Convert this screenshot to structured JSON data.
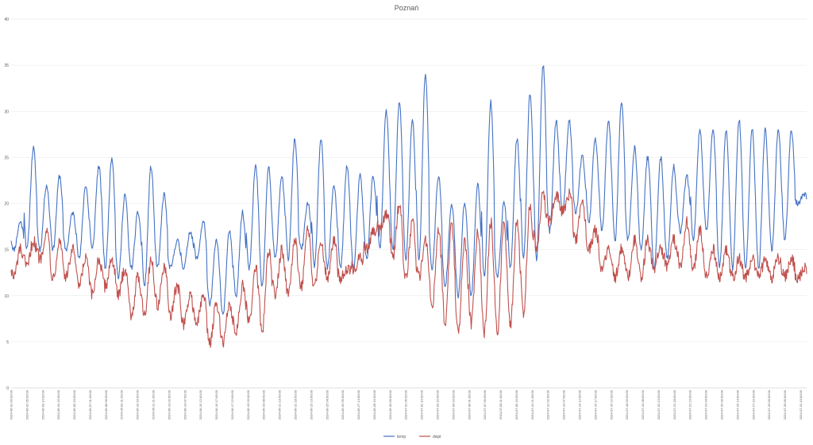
{
  "chart_data": {
    "type": "line",
    "title": "Poznań",
    "xlabel": "",
    "ylabel": "",
    "ylim": [
      0,
      40
    ],
    "yticks": [
      0,
      5,
      10,
      15,
      20,
      25,
      30,
      35,
      40
    ],
    "grid": true,
    "legend_position": "bottom",
    "x_start": "2024-06-01 00:00",
    "x_end": "2024-07-31 21:00",
    "x_tick_step_hours": 3,
    "x_label_pattern": "YYYY-MM-DD HH:00:00",
    "x": [
      "2024-06-01",
      "2024-06-02",
      "2024-06-03",
      "2024-06-04",
      "2024-06-05",
      "2024-06-06",
      "2024-06-07",
      "2024-06-08",
      "2024-06-09",
      "2024-06-10",
      "2024-06-11",
      "2024-06-12",
      "2024-06-13",
      "2024-06-14",
      "2024-06-15",
      "2024-06-16",
      "2024-06-17",
      "2024-06-18",
      "2024-06-19",
      "2024-06-20",
      "2024-06-21",
      "2024-06-22",
      "2024-06-23",
      "2024-06-24",
      "2024-06-25",
      "2024-06-26",
      "2024-06-27",
      "2024-06-28",
      "2024-06-29",
      "2024-06-30",
      "2024-07-01",
      "2024-07-02",
      "2024-07-03",
      "2024-07-04",
      "2024-07-05",
      "2024-07-06",
      "2024-07-07",
      "2024-07-08",
      "2024-07-09",
      "2024-07-10",
      "2024-07-11",
      "2024-07-12",
      "2024-07-13",
      "2024-07-14",
      "2024-07-15",
      "2024-07-16",
      "2024-07-17",
      "2024-07-18",
      "2024-07-19",
      "2024-07-20",
      "2024-07-21",
      "2024-07-22",
      "2024-07-23",
      "2024-07-24",
      "2024-07-25",
      "2024-07-26",
      "2024-07-27",
      "2024-07-28",
      "2024-07-29",
      "2024-07-30",
      "2024-07-31"
    ],
    "series": [
      {
        "name": "temp",
        "color": "#4472C4",
        "daily_min": [
          15,
          15,
          15,
          15,
          15,
          14,
          15,
          13,
          12,
          13,
          11,
          13,
          13,
          13,
          14,
          9,
          8,
          10,
          13,
          11,
          14,
          14,
          15,
          13,
          13,
          13,
          13,
          14,
          15,
          15,
          14,
          14,
          13,
          11,
          10,
          10,
          12,
          12,
          13,
          14,
          14,
          17,
          19,
          19,
          18,
          17,
          16,
          16,
          15,
          13,
          14,
          17,
          16,
          17,
          13,
          13,
          13,
          13,
          15,
          16,
          20
        ],
        "daily_max": [
          18,
          26,
          22,
          23,
          19,
          22,
          24,
          25,
          21,
          19,
          24,
          21,
          16,
          17,
          18,
          16,
          17,
          19,
          24,
          24,
          23,
          27,
          20,
          27,
          22,
          24,
          23,
          23,
          30,
          31,
          29,
          34,
          23,
          20,
          20,
          22,
          31,
          20,
          27,
          32,
          35,
          29,
          29,
          25,
          27,
          29,
          31,
          26,
          25,
          25,
          24,
          23,
          28,
          28,
          28,
          29,
          28,
          28,
          28,
          28,
          21
        ]
      },
      {
        "name": "dwpt",
        "color": "#C0504D",
        "daily_min": [
          12,
          13,
          14,
          12,
          12,
          11,
          10,
          11,
          10,
          8,
          8,
          9,
          8,
          7,
          7,
          5,
          5,
          6,
          7,
          6,
          10,
          10,
          11,
          11,
          12,
          12,
          13,
          15,
          17,
          14,
          12,
          12,
          9,
          7,
          6,
          7,
          6,
          6,
          7,
          8,
          15,
          18,
          19,
          16,
          15,
          13,
          12,
          12,
          12,
          13,
          13,
          13,
          13,
          12,
          12,
          12,
          12,
          12,
          12,
          12,
          12
        ],
        "daily_max": [
          15,
          16,
          17,
          16,
          15,
          14,
          14,
          14,
          13,
          12,
          14,
          13,
          11,
          10,
          10,
          9,
          9,
          11,
          13,
          15,
          15,
          16,
          17,
          16,
          16,
          13,
          14,
          17,
          19,
          20,
          18,
          16,
          17,
          18,
          16,
          17,
          18,
          18,
          18,
          20,
          21,
          21,
          21,
          20,
          17,
          15,
          15,
          16,
          16,
          15,
          16,
          18,
          17,
          15,
          15,
          14,
          14,
          14,
          14,
          14,
          13
        ]
      }
    ]
  }
}
